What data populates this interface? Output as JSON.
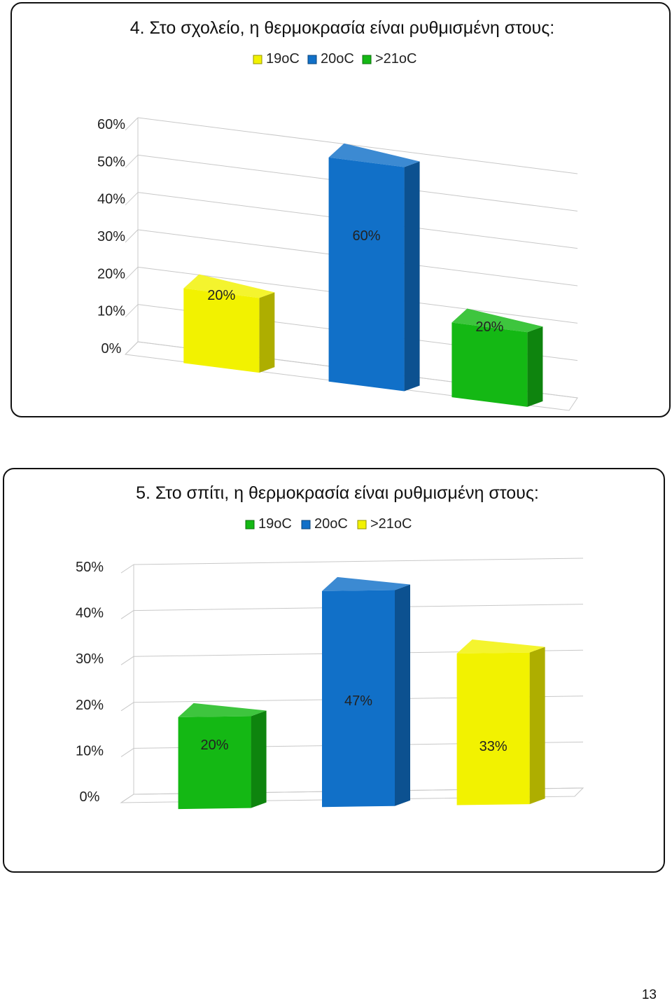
{
  "page_number": "13",
  "chart_data": [
    {
      "type": "bar",
      "title": "4. Στο σχολείο, η θερμοκρασία είναι ρυθμισμένη στους:",
      "categories": [
        "19oC",
        "20oC",
        ">21oC"
      ],
      "values": [
        20,
        60,
        20
      ],
      "data_labels": [
        "20%",
        "60%",
        "20%"
      ],
      "ylim": [
        0,
        60
      ],
      "yticks": [
        "0%",
        "10%",
        "20%",
        "30%",
        "40%",
        "50%",
        "60%"
      ],
      "legend": [
        "19oC",
        "20oC",
        ">21oC"
      ],
      "legend_position": "top",
      "colors": [
        "#f2f200",
        "#1170c8",
        "#14b814"
      ],
      "grid": true
    },
    {
      "type": "bar",
      "title": "5. Στο σπίτι, η θερμοκρασία είναι ρυθμισμένη στους:",
      "categories": [
        "19oC",
        "20oC",
        ">21oC"
      ],
      "values": [
        20,
        47,
        33
      ],
      "data_labels": [
        "20%",
        "47%",
        "33%"
      ],
      "ylim": [
        0,
        50
      ],
      "yticks": [
        "0%",
        "10%",
        "20%",
        "30%",
        "40%",
        "50%"
      ],
      "legend": [
        "19oC",
        "20oC",
        ">21oC"
      ],
      "legend_position": "top",
      "colors": [
        "#14b814",
        "#1170c8",
        "#f2f200"
      ],
      "grid": true
    }
  ]
}
